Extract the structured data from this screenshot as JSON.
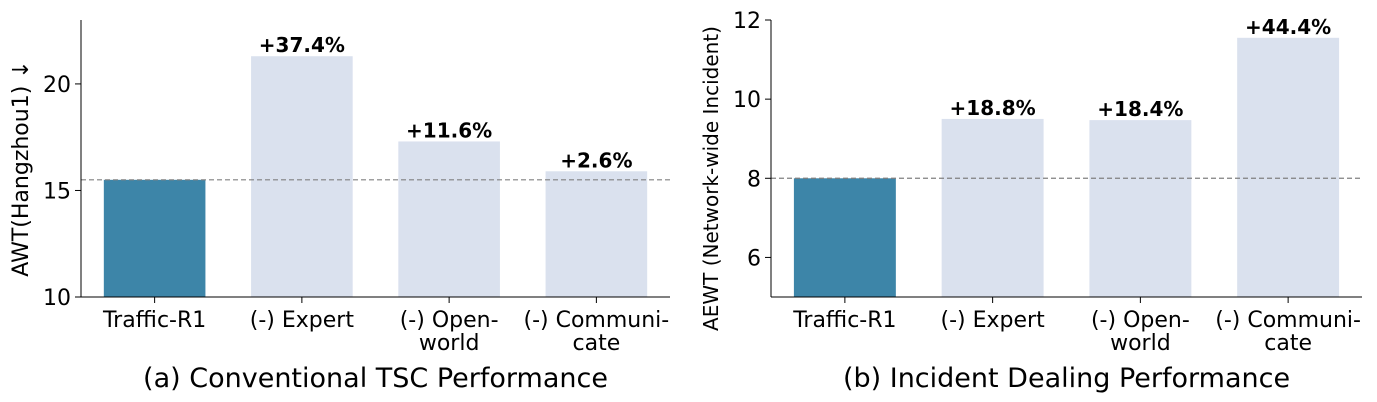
{
  "chart_data": [
    {
      "type": "bar",
      "title": "(a) Conventional TSC Performance",
      "y_label": "AWT(Hangzhou1) ↓",
      "categories": [
        "Traffic-R1",
        "(-) Expert",
        "(-) Open-\nworld",
        "(-) Communi-\ncate"
      ],
      "values": [
        15.5,
        21.3,
        17.3,
        15.9
      ],
      "annotations": [
        null,
        "+37.4%",
        "+11.6%",
        "+2.6%"
      ],
      "colors": [
        "#3d85a8",
        "#dae1ee",
        "#dae1ee",
        "#dae1ee"
      ],
      "ylim": [
        10,
        23
      ],
      "yticks": [
        10,
        15,
        20
      ]
    },
    {
      "type": "bar",
      "title": "(b) Incident Dealing Performance",
      "y_label": "AEWT (Network-wide Incident)",
      "categories": [
        "Traffic-R1",
        "(-) Expert",
        "(-) Open-\nworld",
        "(-) Communi-\ncate"
      ],
      "values": [
        8.0,
        9.5,
        9.47,
        11.55
      ],
      "annotations": [
        null,
        "+18.8%",
        "+18.4%",
        "+44.4%"
      ],
      "colors": [
        "#3d85a8",
        "#dae1ee",
        "#dae1ee",
        "#dae1ee"
      ],
      "ylim": [
        5,
        12
      ],
      "yticks": [
        6,
        8,
        10,
        12
      ]
    }
  ]
}
